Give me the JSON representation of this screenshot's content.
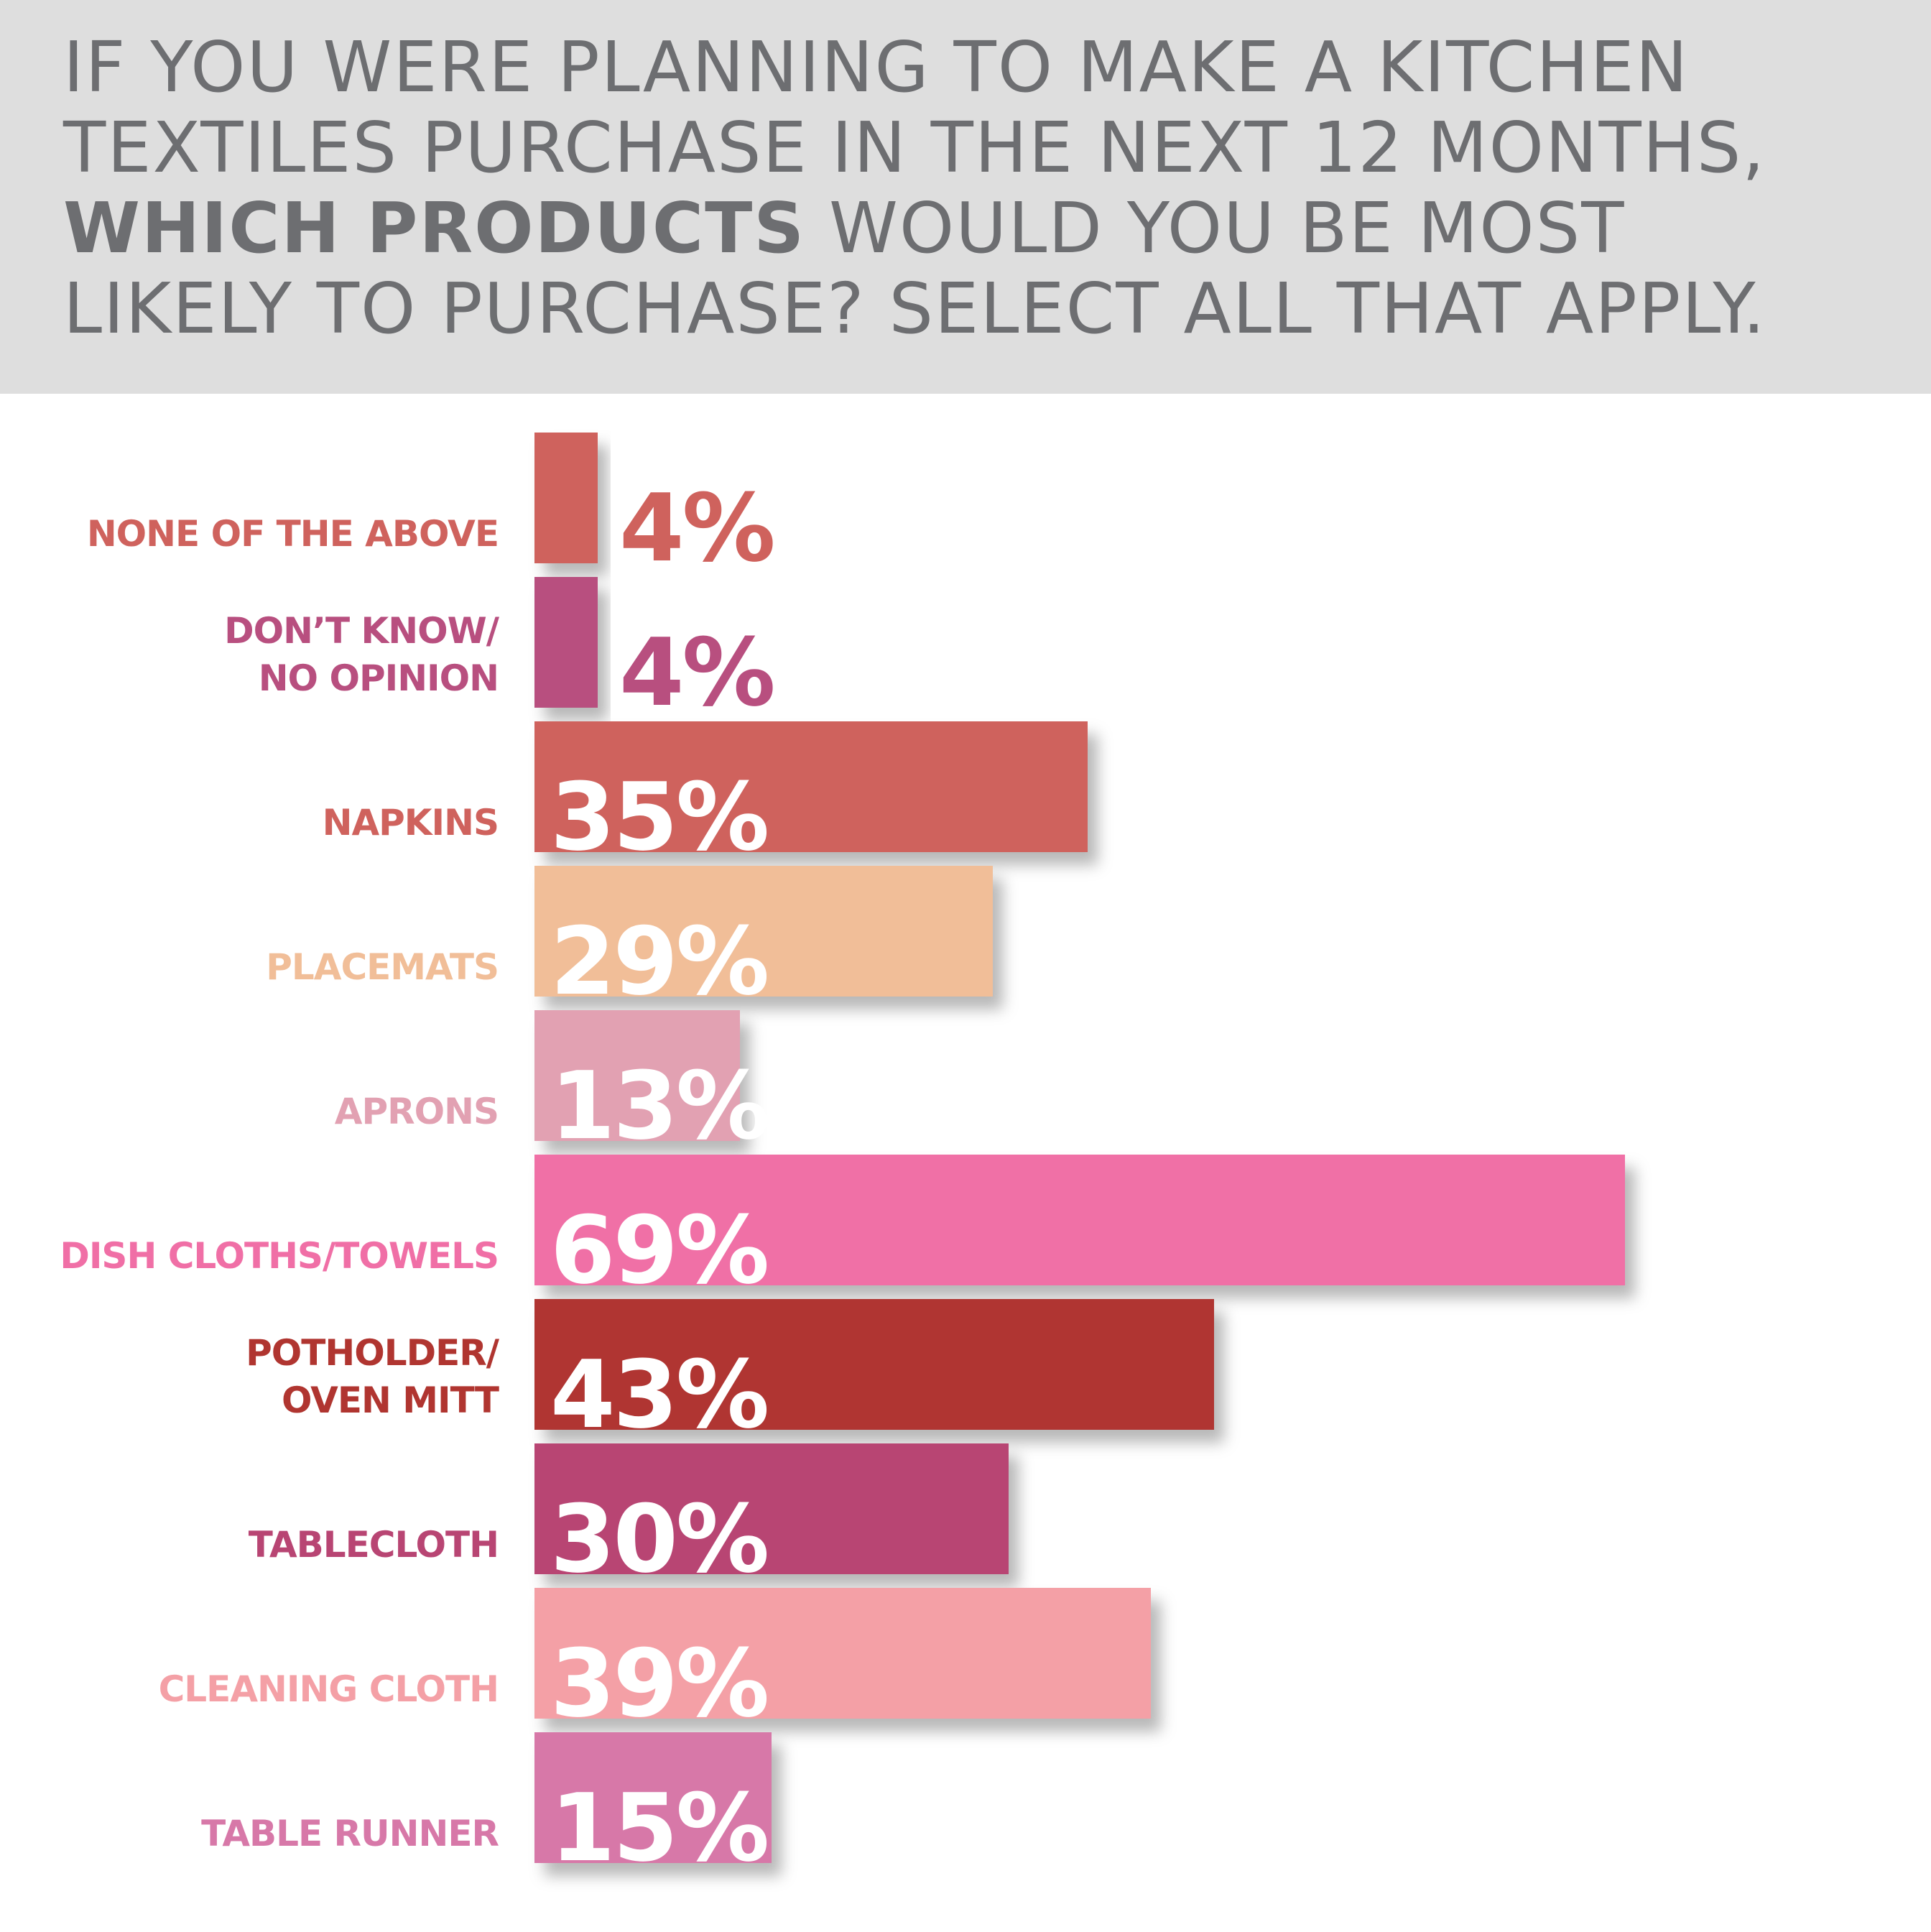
{
  "title": {
    "line1": "IF YOU WERE PLANNING TO MAKE A KITCHEN",
    "line2": "TEXTILES PURCHASE IN THE NEXT 12 MONTHS,",
    "line3_bold": "WHICH PRODUCTS",
    "line3_rest": " WOULD YOU BE MOST",
    "line4": "LIKELY TO PURCHASE? SELECT ALL THAT APPLY."
  },
  "chart_data": {
    "type": "bar",
    "orientation": "horizontal",
    "categories": [
      "NONE OF THE ABOVE",
      "DON’T KNOW/ NO OPINION",
      "NAPKINS",
      "PLACEMATS",
      "APRONS",
      "DISH CLOTHS/TOWELS",
      "POTHOLDER/ OVEN MITT",
      "TABLECLOTH",
      "CLEANING CLOTH",
      "TABLE RUNNER"
    ],
    "label_lines": [
      [
        "NONE OF THE ABOVE"
      ],
      [
        "DON’T KNOW/",
        "NO OPINION"
      ],
      [
        "NAPKINS"
      ],
      [
        "PLACEMATS"
      ],
      [
        "APRONS"
      ],
      [
        "DISH CLOTHS/TOWELS"
      ],
      [
        "POTHOLDER/",
        "OVEN MITT"
      ],
      [
        "TABLECLOTH"
      ],
      [
        "CLEANING CLOTH"
      ],
      [
        "TABLE RUNNER"
      ]
    ],
    "values": [
      4,
      4,
      35,
      29,
      13,
      69,
      43,
      30,
      39,
      15
    ],
    "value_labels": [
      "4%",
      "4%",
      "35%",
      "29%",
      "13%",
      "69%",
      "43%",
      "30%",
      "39%",
      "15%"
    ],
    "colors": [
      "#cf625d",
      "#b84f7f",
      "#cf625d",
      "#f1be98",
      "#e2a1b2",
      "#f06fa6",
      "#b03530",
      "#b84573",
      "#f4a0a6",
      "#d778a8"
    ],
    "label_colors": [
      "#cf625d",
      "#b84f7f",
      "#cf625d",
      "#f1be98",
      "#e2a1b2",
      "#f06fa6",
      "#b03530",
      "#b84573",
      "#f4a0a6",
      "#d778a8"
    ],
    "value_label_colors": [
      "#cf625d",
      "#b84f7f",
      "#ffffff",
      "#ffffff",
      "#ffffff",
      "#ffffff",
      "#ffffff",
      "#ffffff",
      "#ffffff",
      "#ffffff"
    ],
    "xlim": [
      0,
      100
    ],
    "grid": false,
    "legend": "none"
  }
}
